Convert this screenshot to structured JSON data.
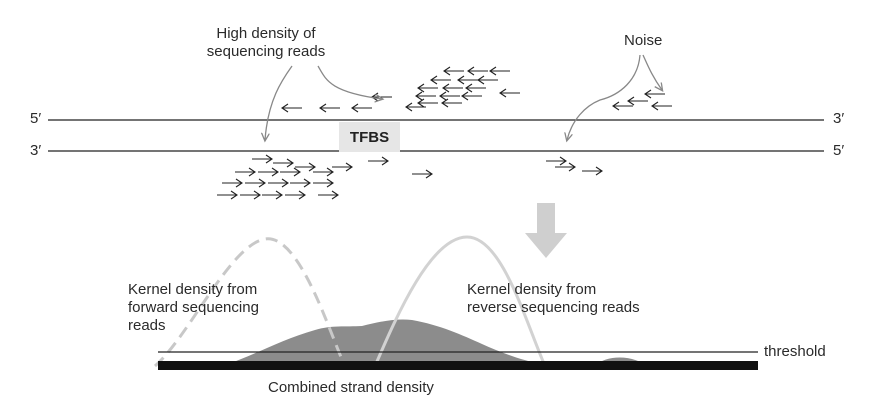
{
  "labels": {
    "high_density": "High density of\nsequencing reads",
    "noise": "Noise",
    "tfbs": "TFBS",
    "top_left_end": "5′",
    "top_right_end": "3′",
    "bottom_left_end": "3′",
    "bottom_right_end": "5′",
    "kernel_forward": "Kernel density from\nforward sequencing\nreads",
    "kernel_reverse": "Kernel density from\nreverse sequencing reads",
    "threshold": "threshold",
    "combined": "Combined strand density"
  },
  "colors": {
    "strand": "#222222",
    "read_arrow": "#222222",
    "pointer": "#888888",
    "block_arrow": "#cfcfcf",
    "combined_fill": "#8c8c8c",
    "forward_kernel": "#c8c8c8",
    "reverse_kernel": "#d2d2d2",
    "baseline_bar": "#111111"
  }
}
